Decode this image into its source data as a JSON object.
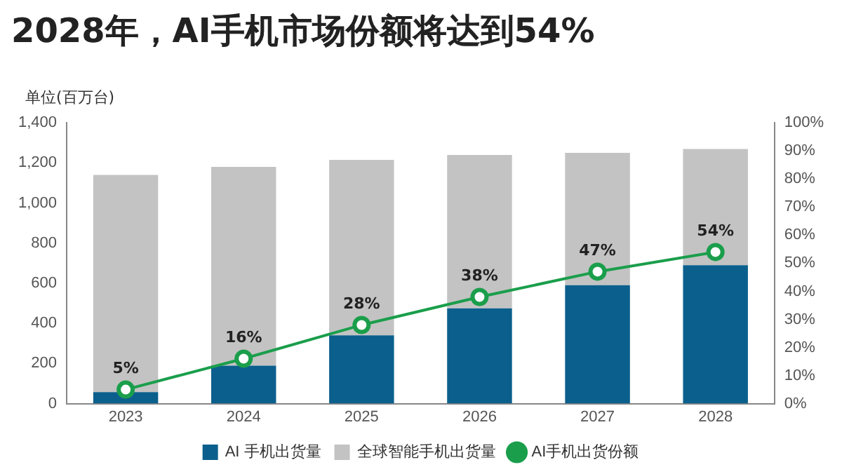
{
  "chart_data": {
    "type": "bar",
    "title": "2028年，AI手机市场份额将达到54%",
    "ylabel": "单位(百万台)",
    "categories": [
      "2023",
      "2024",
      "2025",
      "2026",
      "2027",
      "2028"
    ],
    "stacked": true,
    "series": [
      {
        "name": "AI 手机出货量",
        "color": "#0b5f8c",
        "values": [
          57,
          189,
          340,
          475,
          590,
          690
        ]
      },
      {
        "name": "全球智能手机出货量",
        "color": "#c3c3c3",
        "values": [
          1083,
          991,
          875,
          765,
          660,
          580
        ]
      },
      {
        "name": "AI手机出货份额",
        "type": "line",
        "axis": "y2",
        "color": "#1a9e4b",
        "values": [
          5,
          16,
          28,
          38,
          47,
          54
        ],
        "value_labels": [
          "5%",
          "16%",
          "28%",
          "38%",
          "47%",
          "54%"
        ]
      }
    ],
    "ylim": [
      0,
      1400
    ],
    "yticks": [
      {
        "value": 0,
        "label": "0"
      },
      {
        "value": 200,
        "label": "200"
      },
      {
        "value": 400,
        "label": "400"
      },
      {
        "value": 600,
        "label": "600"
      },
      {
        "value": 800,
        "label": "800"
      },
      {
        "value": 1000,
        "label": "1,000"
      },
      {
        "value": 1200,
        "label": "1,200"
      },
      {
        "value": 1400,
        "label": "1,400"
      }
    ],
    "y2lim": [
      0,
      100
    ],
    "y2ticks": [
      {
        "value": 0,
        "label": "0%"
      },
      {
        "value": 10,
        "label": "10%"
      },
      {
        "value": 20,
        "label": "20%"
      },
      {
        "value": 30,
        "label": "30%"
      },
      {
        "value": 40,
        "label": "40%"
      },
      {
        "value": 50,
        "label": "50%"
      },
      {
        "value": 60,
        "label": "60%"
      },
      {
        "value": 70,
        "label": "70%"
      },
      {
        "value": 80,
        "label": "80%"
      },
      {
        "value": 90,
        "label": "90%"
      },
      {
        "value": 100,
        "label": "100%"
      }
    ],
    "grid": false,
    "legend": "bottom",
    "marker": "circle",
    "line_style": "solid"
  }
}
